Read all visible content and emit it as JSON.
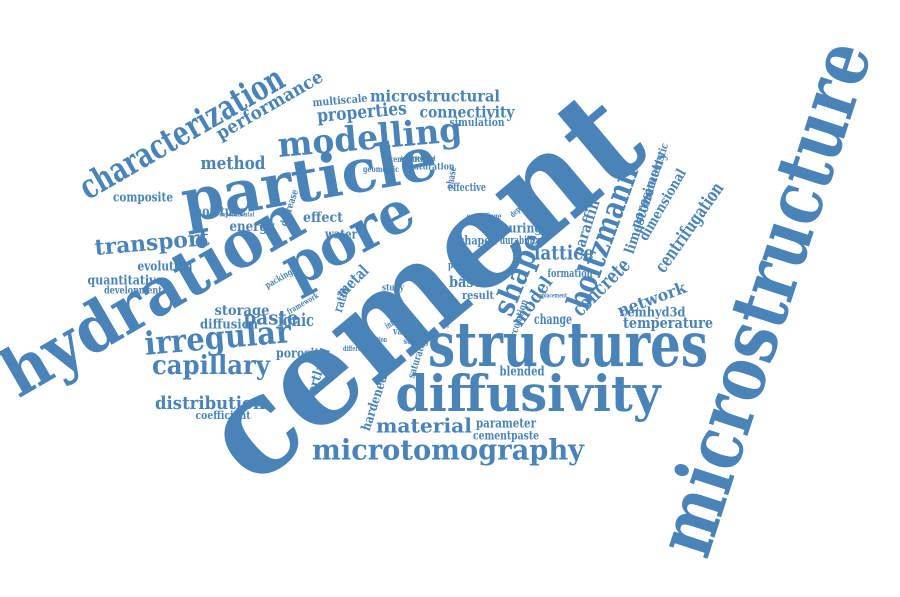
{
  "color": "#4a83b7",
  "words": [
    {
      "id": "microstructure",
      "text": "microstructure"
    },
    {
      "id": "cement",
      "text": "cement"
    },
    {
      "id": "hydration",
      "text": "hydration"
    },
    {
      "id": "structures",
      "text": "structures"
    },
    {
      "id": "particle",
      "text": "particle"
    },
    {
      "id": "pore",
      "text": "pore"
    },
    {
      "id": "diffusivity",
      "text": "diffusivity"
    },
    {
      "id": "characterization",
      "text": "characterization"
    },
    {
      "id": "modelling",
      "text": "modelling"
    },
    {
      "id": "microtomography",
      "text": "microtomography"
    },
    {
      "id": "boltzmann",
      "text": "boltzmann"
    },
    {
      "id": "shape",
      "text": "shape"
    },
    {
      "id": "irregular",
      "text": "irregular"
    },
    {
      "id": "capillary",
      "text": "capillary"
    },
    {
      "id": "transport",
      "text": "transport"
    },
    {
      "id": "lattice",
      "text": "lattice"
    },
    {
      "id": "performance",
      "text": "performance"
    },
    {
      "id": "properties",
      "text": "properties"
    },
    {
      "id": "microstructural",
      "text": "microstructural"
    },
    {
      "id": "connectivity",
      "text": "connectivity"
    },
    {
      "id": "method",
      "text": "method"
    },
    {
      "id": "material",
      "text": "material"
    },
    {
      "id": "paste",
      "text": "paste"
    },
    {
      "id": "ionic",
      "text": "ionic"
    },
    {
      "id": "distribution",
      "text": "distribution"
    },
    {
      "id": "concrete",
      "text": "concrete"
    },
    {
      "id": "centrifugation",
      "text": "centrifugation"
    },
    {
      "id": "network",
      "text": "network"
    },
    {
      "id": "model",
      "text": "model"
    },
    {
      "id": "limestone",
      "text": "limestone"
    },
    {
      "id": "porosimetry",
      "text": "porosimetry"
    },
    {
      "id": "dimensional",
      "text": "dimensional"
    },
    {
      "id": "characteristic",
      "text": "characteristic"
    },
    {
      "id": "paraffin",
      "text": "paraffin"
    },
    {
      "id": "temperature",
      "text": "temperature"
    },
    {
      "id": "cemhyd3d",
      "text": "cemhyd3d"
    },
    {
      "id": "composite",
      "text": "composite"
    },
    {
      "id": "moisture",
      "text": "moisture"
    },
    {
      "id": "energy",
      "text": "energy"
    },
    {
      "id": "effect",
      "text": "effect"
    },
    {
      "id": "water",
      "text": "water"
    },
    {
      "id": "evolution",
      "text": "evolution"
    },
    {
      "id": "quantitative",
      "text": "quantitative"
    },
    {
      "id": "development",
      "text": "development"
    },
    {
      "id": "storage",
      "text": "storage"
    },
    {
      "id": "diffusion",
      "text": "diffusion"
    },
    {
      "id": "porosity",
      "text": "porosity"
    },
    {
      "id": "coefficient",
      "text": "coefficient"
    },
    {
      "id": "portland",
      "text": "portland"
    },
    {
      "id": "hardened",
      "text": "hardened"
    },
    {
      "id": "parameter",
      "text": "parameter"
    },
    {
      "id": "cementpaste",
      "text": "cementpaste"
    },
    {
      "id": "blended",
      "text": "blended"
    },
    {
      "id": "multiscale",
      "text": "multiscale"
    },
    {
      "id": "simulation",
      "text": "simulation"
    },
    {
      "id": "cementitious",
      "text": "cementitious"
    },
    {
      "id": "saturation",
      "text": "saturation"
    },
    {
      "id": "effective",
      "text": "effective"
    },
    {
      "id": "geometric",
      "text": "geometric"
    },
    {
      "id": "phase",
      "text": "phase"
    },
    {
      "id": "curing",
      "text": "curing"
    },
    {
      "id": "durability",
      "text": "durability"
    },
    {
      "id": "shaped",
      "text": "shaped"
    },
    {
      "id": "formation",
      "text": "formation"
    },
    {
      "id": "change",
      "text": "change"
    },
    {
      "id": "based",
      "text": "based"
    },
    {
      "id": "result",
      "text": "result"
    },
    {
      "id": "metal",
      "text": "metal"
    },
    {
      "id": "ratio",
      "text": "ratio"
    },
    {
      "id": "study",
      "text": "study"
    },
    {
      "id": "various",
      "text": "various"
    },
    {
      "id": "setting",
      "text": "setting"
    },
    {
      "id": "powder",
      "text": "powder"
    },
    {
      "id": "percolation",
      "text": "percolation"
    },
    {
      "id": "saturated",
      "text": "saturated"
    },
    {
      "id": "decrease",
      "text": "decrease"
    },
    {
      "id": "packing",
      "text": "packing"
    },
    {
      "id": "framework",
      "text": "framework"
    },
    {
      "id": "experimental",
      "text": "experimental"
    },
    {
      "id": "incorporated",
      "text": "incorporated"
    },
    {
      "id": "centrifuge",
      "text": "centrifuge"
    },
    {
      "id": "dependent",
      "text": "dependent"
    },
    {
      "id": "replacement",
      "text": "replacement"
    },
    {
      "id": "influence",
      "text": "influence"
    },
    {
      "id": "prediction",
      "text": "prediction"
    },
    {
      "id": "different",
      "text": "different"
    },
    {
      "id": "content",
      "text": "content"
    },
    {
      "id": "simulate",
      "text": "simulate"
    }
  ]
}
